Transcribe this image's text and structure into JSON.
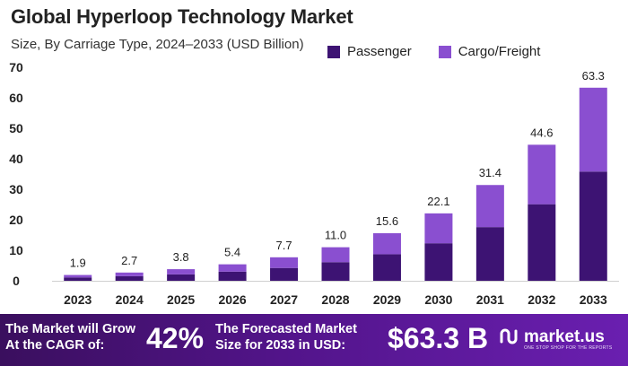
{
  "colors": {
    "passenger": "#3d1373",
    "cargo": "#8a4fd0",
    "axis_text": "#222222",
    "gridline": "#cfcfcf"
  },
  "chart_data": {
    "type": "bar",
    "stacked": true,
    "title": "Global Hyperloop Technology Market",
    "subtitle": "Size, By Carriage Type, 2024–2033 (USD Billion)",
    "categories": [
      "2023",
      "2024",
      "2025",
      "2026",
      "2027",
      "2028",
      "2029",
      "2030",
      "2031",
      "2032",
      "2033"
    ],
    "series": [
      {
        "name": "Passenger",
        "values": [
          1.1,
          1.5,
          2.1,
          3.0,
          4.2,
          6.1,
          8.7,
          12.3,
          17.6,
          25.1,
          35.8
        ]
      },
      {
        "name": "Cargo/Freight",
        "values": [
          0.8,
          1.2,
          1.7,
          2.4,
          3.5,
          4.9,
          6.9,
          9.8,
          13.8,
          19.5,
          27.5
        ]
      }
    ],
    "totals": [
      "1.9",
      "2.7",
      "3.8",
      "5.4",
      "7.7",
      "11.0",
      "15.6",
      "22.1",
      "31.4",
      "44.6",
      "63.3"
    ],
    "ylim": [
      0,
      70
    ],
    "yticks": [
      "0",
      "10",
      "20",
      "30",
      "40",
      "50",
      "60",
      "70"
    ],
    "xlabel": "",
    "ylabel": "",
    "legend_position": "top-right",
    "grid": false
  },
  "footer": {
    "cagr_text": "The Market will Grow At the CAGR of:",
    "cagr_value": "42%",
    "forecast_text": "The Forecasted Market Size for 2033 in USD:",
    "forecast_value": "$63.3 B",
    "brand_name": "market.us",
    "brand_tagline": "ONE STOP SHOP FOR THE REPORTS"
  }
}
